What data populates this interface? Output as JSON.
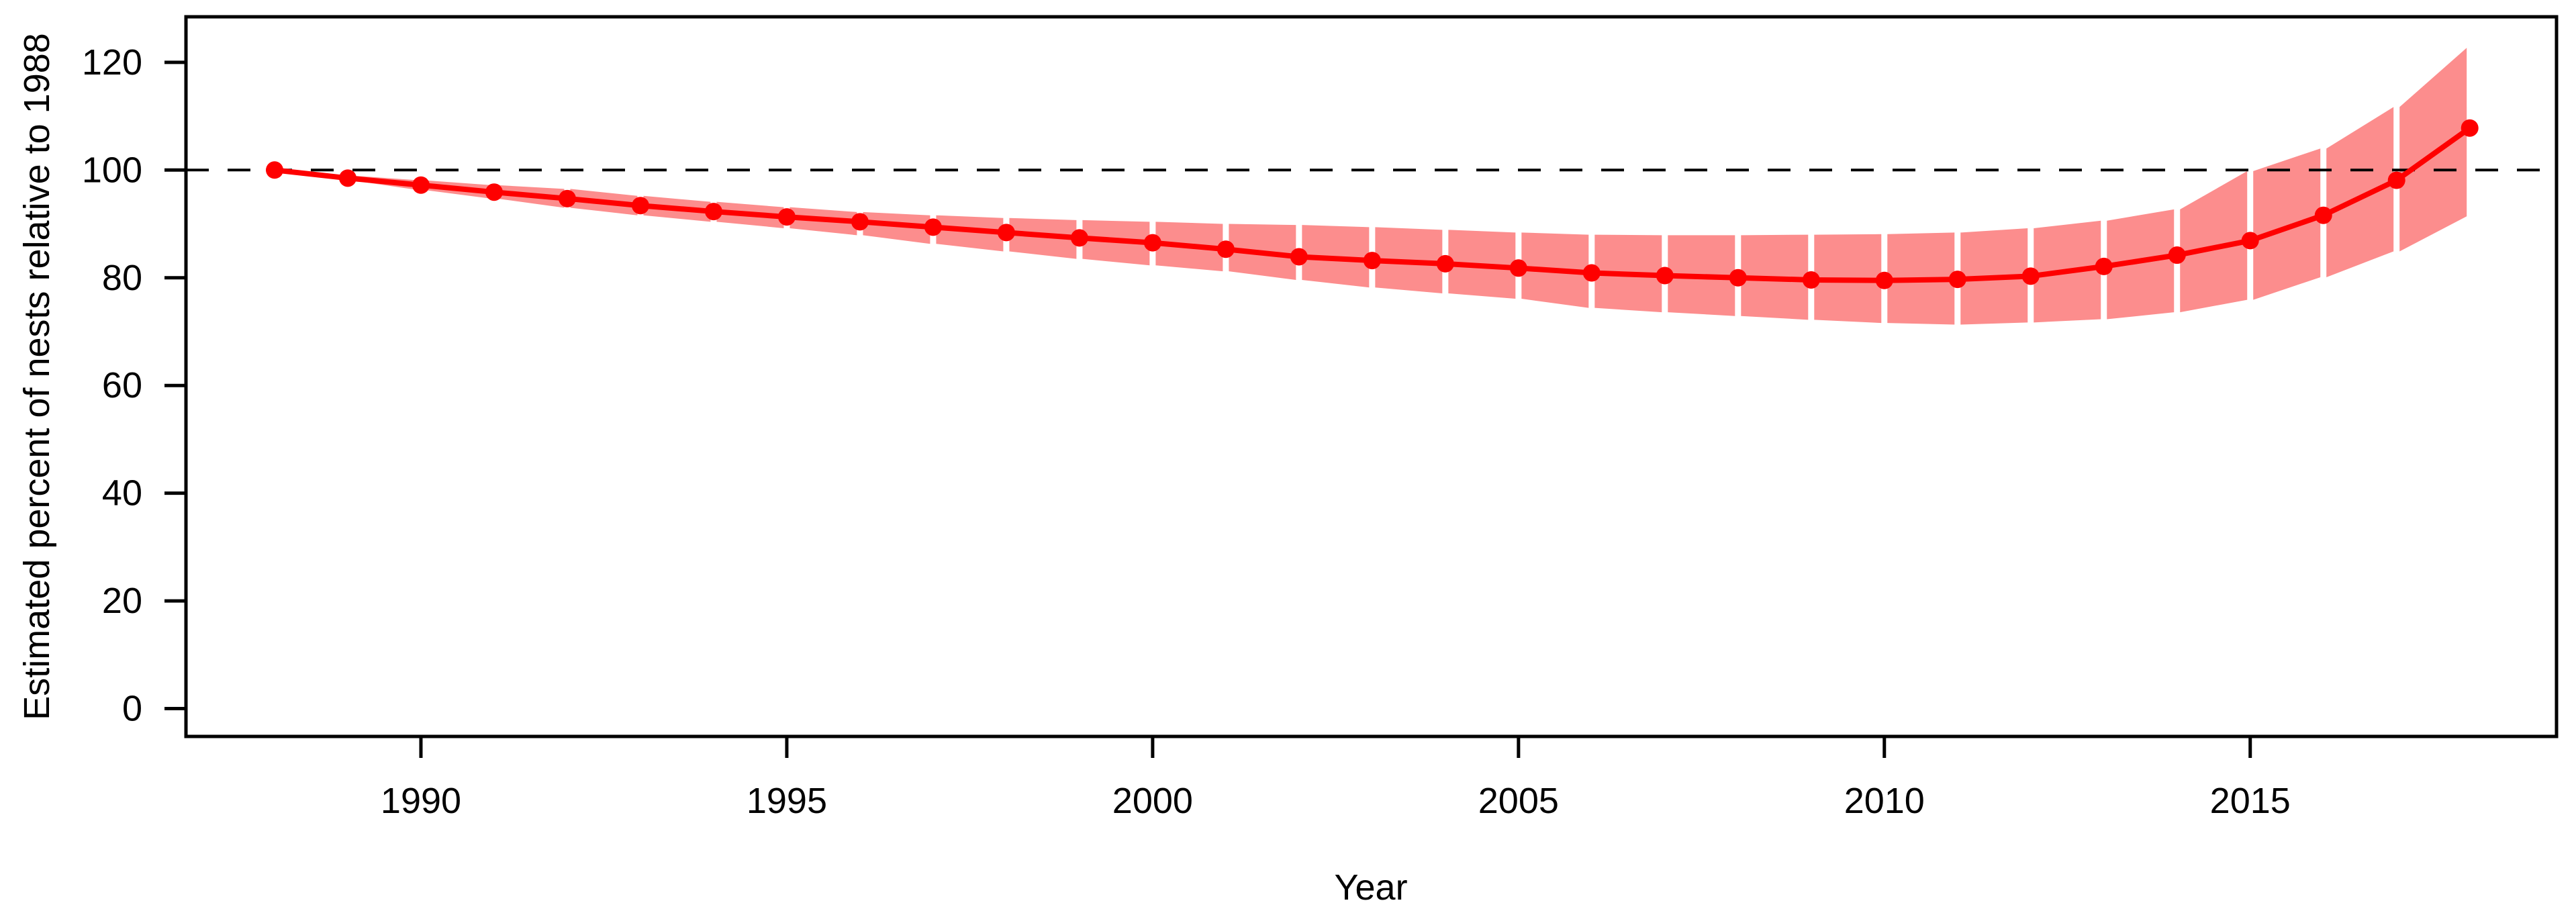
{
  "figure": {
    "background": "#ffffff"
  },
  "chart_data": {
    "type": "line",
    "title": "",
    "xlabel": "Year",
    "ylabel": "Estimated percent of nests relative to 1988",
    "x_ticks": [
      1990,
      1995,
      2000,
      2005,
      2010,
      2015
    ],
    "y_ticks": [
      0,
      20,
      40,
      60,
      80,
      100,
      120
    ],
    "xlim": [
      1986.8,
      2019.2
    ],
    "ylim": [
      -5.2,
      128.4
    ],
    "grid": false,
    "legend": null,
    "reference_line": {
      "y": 100,
      "style": "dashed",
      "color": "#000000"
    },
    "colors": {
      "line": "#fe0000",
      "point": "#fe0000",
      "band": "#fc8d8d",
      "axis": "#000000"
    },
    "series": [
      {
        "name": "Estimated percent of nests relative to 1988 (with confidence band)",
        "x": [
          1988,
          1989,
          1990,
          1991,
          1992,
          1993,
          1994,
          1995,
          1996,
          1997,
          1998,
          1999,
          2000,
          2001,
          2002,
          2003,
          2004,
          2005,
          2006,
          2007,
          2008,
          2009,
          2010,
          2011,
          2012,
          2013,
          2014,
          2015,
          2016,
          2017,
          2018
        ],
        "y": [
          100.0,
          98.5,
          97.2,
          95.9,
          94.7,
          93.4,
          92.3,
          91.3,
          90.4,
          89.4,
          88.4,
          87.4,
          86.5,
          85.3,
          83.9,
          83.2,
          82.6,
          81.8,
          80.9,
          80.4,
          80.0,
          79.6,
          79.5,
          79.7,
          80.3,
          82.1,
          84.2,
          86.9,
          91.6,
          98.1,
          107.8
        ],
        "ci_lower": [
          100.0,
          98.1,
          96.3,
          94.7,
          93.0,
          91.6,
          90.4,
          89.2,
          87.9,
          86.3,
          84.9,
          83.5,
          82.3,
          81.2,
          79.6,
          78.2,
          77.1,
          76.1,
          74.4,
          73.6,
          72.9,
          72.2,
          71.6,
          71.3,
          71.7,
          72.3,
          73.6,
          75.9,
          80.1,
          84.9,
          91.4
        ],
        "ci_upper": [
          100.0,
          99.0,
          98.1,
          97.2,
          96.5,
          95.2,
          94.1,
          93.1,
          92.2,
          91.6,
          91.1,
          90.7,
          90.4,
          90.0,
          89.8,
          89.4,
          88.9,
          88.4,
          88.0,
          87.9,
          87.9,
          88.0,
          88.1,
          88.4,
          89.2,
          90.6,
          92.7,
          99.8,
          104.0,
          111.7,
          122.7
        ]
      }
    ]
  }
}
